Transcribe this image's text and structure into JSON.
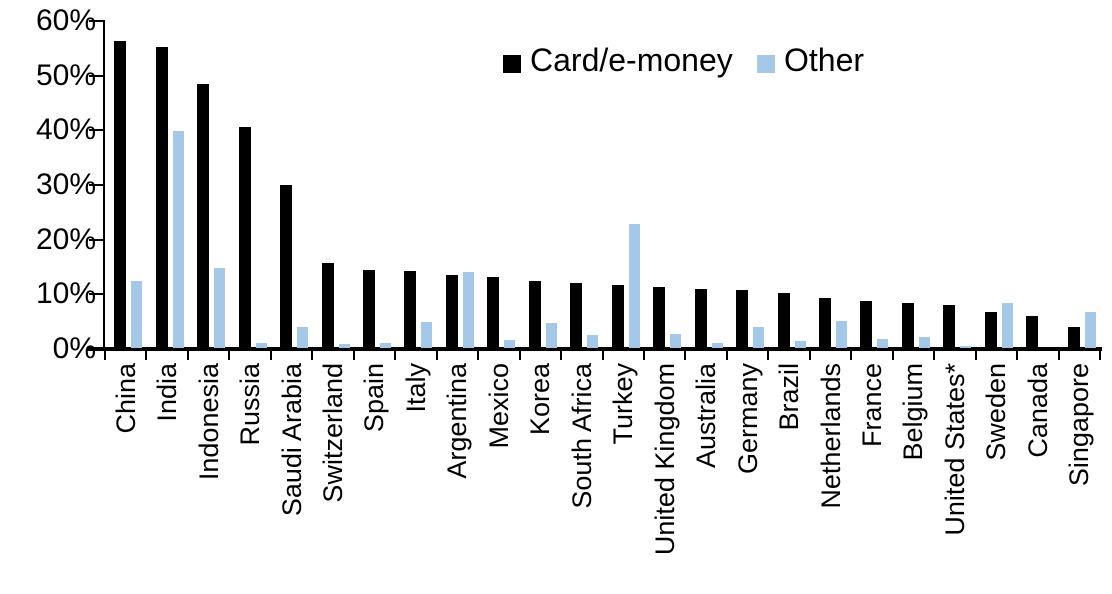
{
  "chart_data": {
    "type": "bar",
    "title": "",
    "xlabel": "",
    "ylabel": "",
    "ylim": [
      0,
      60
    ],
    "ytick_step": 10,
    "ytick_labels": [
      "0%",
      "10%",
      "20%",
      "30%",
      "40%",
      "50%",
      "60%"
    ],
    "grid": false,
    "legend_position": "top-center",
    "categories": [
      "China",
      "India",
      "Indonesia",
      "Russia",
      "Saudi Arabia",
      "Switzerland",
      "Spain",
      "Italy",
      "Argentina",
      "Mexico",
      "Korea",
      "South Africa",
      "Turkey",
      "United Kingdom",
      "Australia",
      "Germany",
      "Brazil",
      "Netherlands",
      "France",
      "Belgium",
      "United States*",
      "Sweden",
      "Canada",
      "Singapore"
    ],
    "series": [
      {
        "name": "Card/e-money",
        "color": "#000000",
        "values": [
          56.2,
          55.0,
          48.3,
          40.5,
          29.9,
          15.6,
          14.2,
          14.1,
          13.4,
          12.9,
          12.2,
          11.8,
          11.6,
          11.1,
          10.8,
          10.6,
          10.0,
          9.2,
          8.6,
          8.3,
          7.9,
          6.5,
          5.9,
          3.9
        ]
      },
      {
        "name": "Other",
        "color": "#A6C8E8",
        "values": [
          12.3,
          39.7,
          14.6,
          1.0,
          3.9,
          0.8,
          1.0,
          4.7,
          13.9,
          1.4,
          4.6,
          2.4,
          22.7,
          2.5,
          1.0,
          3.9,
          1.2,
          4.9,
          1.6,
          2.0,
          0.3,
          8.2,
          0,
          6.6
        ]
      }
    ]
  },
  "legend": {
    "card_label": "Card/e-money",
    "other_label": "Other"
  }
}
